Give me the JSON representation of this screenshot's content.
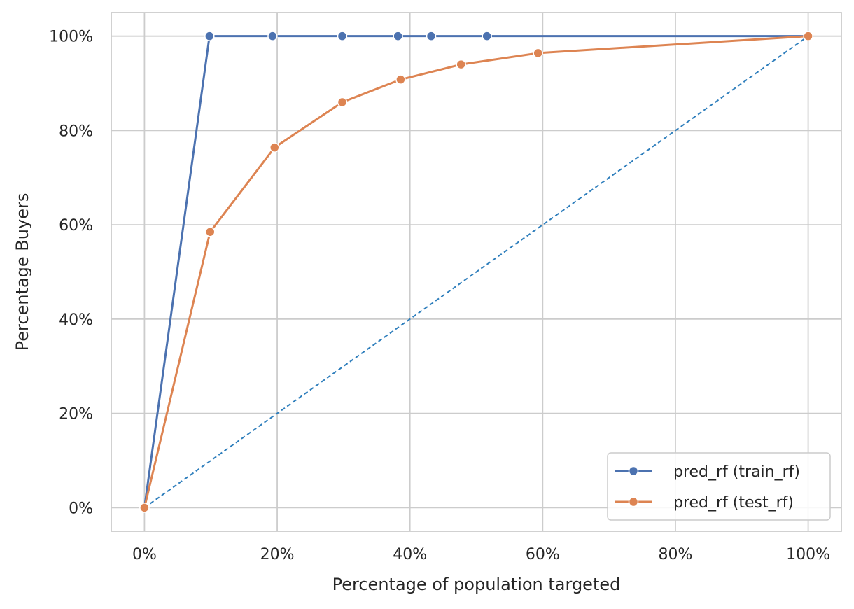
{
  "chart_data": {
    "type": "line",
    "title": "",
    "xlabel": "Percentage of population targeted",
    "ylabel": "Percentage Buyers",
    "xlim": [
      -0.05,
      1.05
    ],
    "ylim": [
      -0.05,
      1.05
    ],
    "xticks": [
      0,
      0.2,
      0.4,
      0.6,
      0.8,
      1.0
    ],
    "yticks": [
      0,
      0.2,
      0.4,
      0.6,
      0.8,
      1.0
    ],
    "xtick_labels": [
      "0%",
      "20%",
      "40%",
      "60%",
      "80%",
      "100%"
    ],
    "ytick_labels": [
      "0%",
      "20%",
      "40%",
      "60%",
      "80%",
      "100%"
    ],
    "grid": true,
    "legend_position": "bottom-right",
    "series": [
      {
        "name": "pred_rf (train_rf)",
        "color": "#4c72b0",
        "marker": "circle",
        "x": [
          0,
          0.098,
          0.193,
          0.298,
          0.382,
          0.432,
          0.516,
          1.0
        ],
        "y": [
          0,
          1.0,
          1.0,
          1.0,
          1.0,
          1.0,
          1.0,
          1.0
        ]
      },
      {
        "name": "pred_rf (test_rf)",
        "color": "#dd8452",
        "marker": "circle",
        "x": [
          0,
          0.099,
          0.196,
          0.298,
          0.386,
          0.477,
          0.593,
          1.0
        ],
        "y": [
          0,
          0.585,
          0.764,
          0.86,
          0.908,
          0.94,
          0.964,
          1.0
        ]
      }
    ],
    "reference_line": {
      "color": "#2e7ebc",
      "style": "dashed",
      "x": [
        0,
        1.0
      ],
      "y": [
        0,
        1.0
      ]
    }
  }
}
